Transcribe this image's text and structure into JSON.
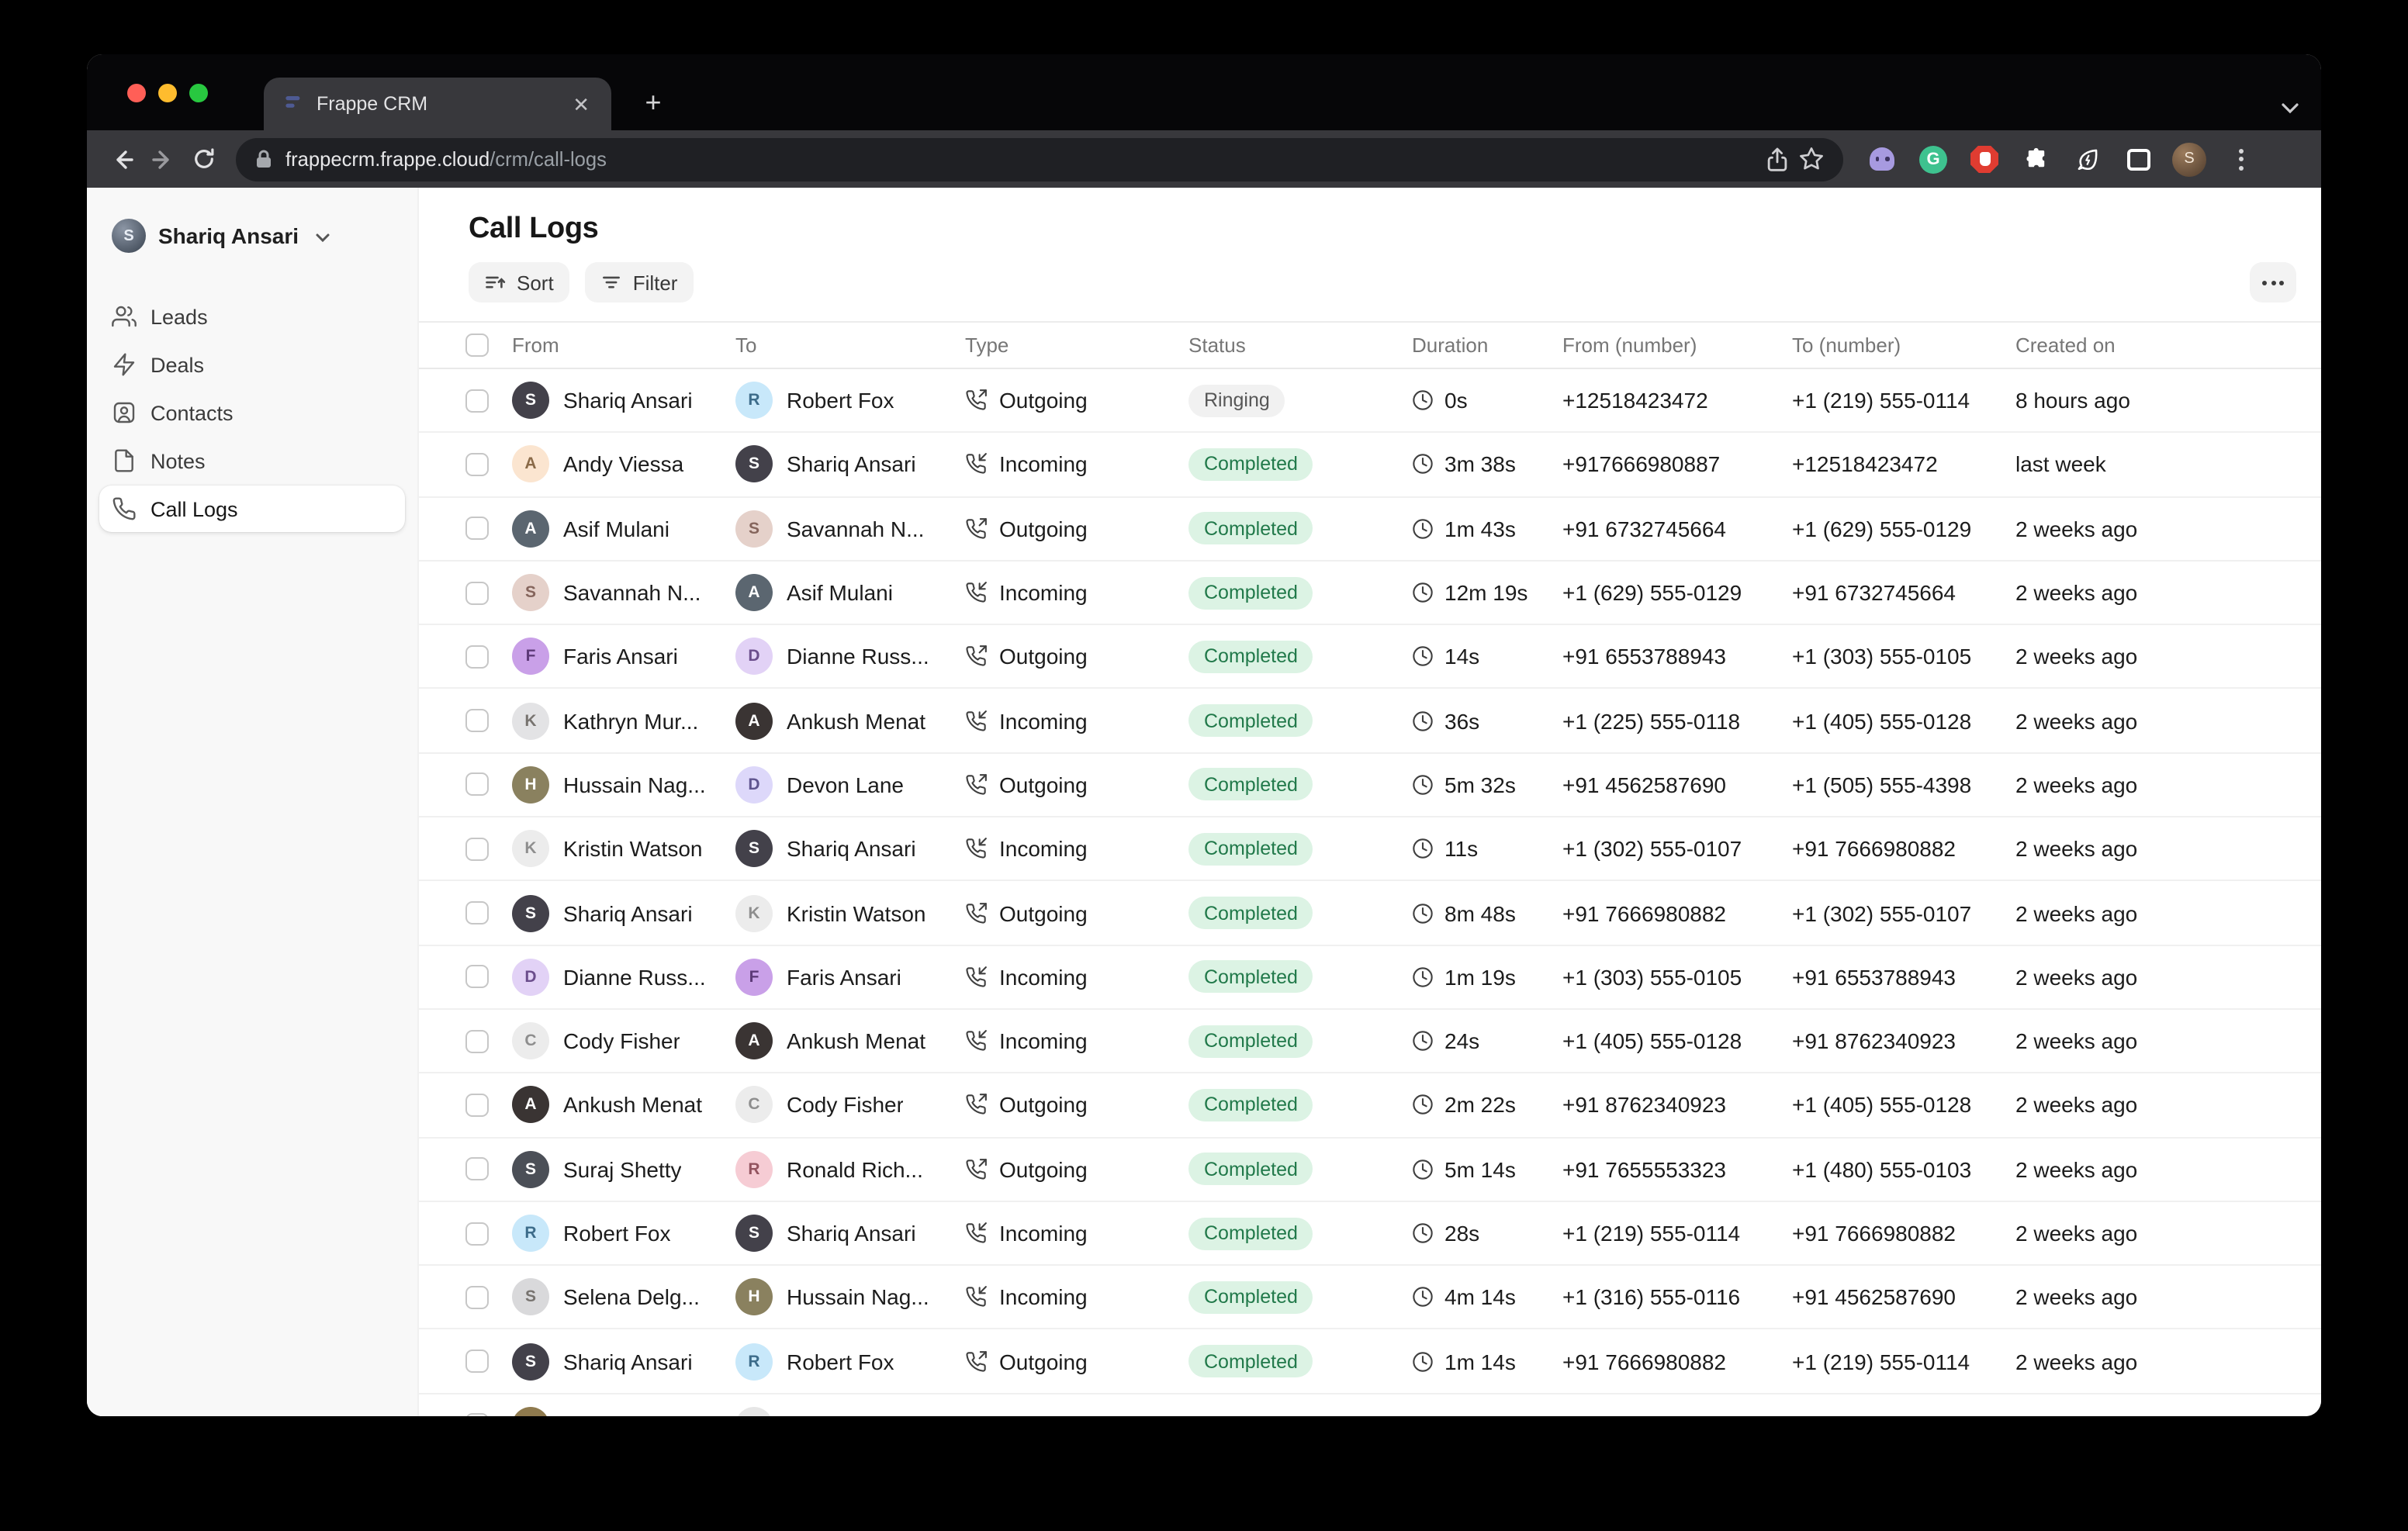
{
  "browser": {
    "tab_title": "Frappe CRM",
    "close_glyph": "✕",
    "new_tab_glyph": "+",
    "url_domain": "frappecrm.frappe.cloud",
    "url_path": "/crm/call-logs",
    "extension_g_letter": "G"
  },
  "colors": {
    "traffic_red": "#ff5f57",
    "traffic_yellow": "#febc2e",
    "traffic_green": "#28c840",
    "completed_badge_bg": "#dcf3e4",
    "completed_badge_text": "#21794a",
    "ringing_badge_bg": "#f1f1f1",
    "ringing_badge_text": "#565656",
    "sidebar_bg": "#f8f8f8",
    "chrome_toolbar": "#38383c",
    "omnibox_bg": "#1f2024"
  },
  "sidebar": {
    "user_name": "Shariq Ansari",
    "user_initial": "S",
    "items": [
      {
        "label": "Leads"
      },
      {
        "label": "Deals"
      },
      {
        "label": "Contacts"
      },
      {
        "label": "Notes"
      },
      {
        "label": "Call Logs"
      }
    ],
    "active_item": "Call Logs"
  },
  "header": {
    "title": "Call Logs",
    "sort_label": "Sort",
    "filter_label": "Filter"
  },
  "table": {
    "columns": [
      {
        "label": "From"
      },
      {
        "label": "To"
      },
      {
        "label": "Type"
      },
      {
        "label": "Status"
      },
      {
        "label": "Duration"
      },
      {
        "label": "From (number)"
      },
      {
        "label": "To (number)"
      },
      {
        "label": "Created on"
      }
    ],
    "rows": [
      {
        "from": {
          "name": "Shariq Ansari",
          "initial": "S",
          "bg": "#43414a",
          "fg": "#ffffff"
        },
        "to": {
          "name": "Robert Fox",
          "initial": "R",
          "bg": "#c8e8fa",
          "fg": "#3d6c8a"
        },
        "type": "Outgoing",
        "status": "Ringing",
        "duration": "0s",
        "from_number": "+12518423472",
        "to_number": "+1 (219) 555-0114",
        "created": "8 hours ago"
      },
      {
        "from": {
          "name": "Andy Viessa",
          "initial": "A",
          "bg": "#fbe5d0",
          "fg": "#8a6a48"
        },
        "to": {
          "name": "Shariq Ansari",
          "initial": "S",
          "bg": "#43414a",
          "fg": "#ffffff"
        },
        "type": "Incoming",
        "status": "Completed",
        "duration": "3m 38s",
        "from_number": "+917666980887",
        "to_number": "+12518423472",
        "created": "last week"
      },
      {
        "from": {
          "name": "Asif Mulani",
          "initial": "A",
          "bg": "#5b6670",
          "fg": "#ffffff"
        },
        "to": {
          "name": "Savannah N...",
          "initial": "S",
          "bg": "#e5d1ca",
          "fg": "#85655c"
        },
        "type": "Outgoing",
        "status": "Completed",
        "duration": "1m 43s",
        "from_number": "+91 6732745664",
        "to_number": "+1 (629) 555-0129",
        "created": "2 weeks ago"
      },
      {
        "from": {
          "name": "Savannah N...",
          "initial": "S",
          "bg": "#e5d1ca",
          "fg": "#85655c"
        },
        "to": {
          "name": "Asif Mulani",
          "initial": "A",
          "bg": "#5b6670",
          "fg": "#ffffff"
        },
        "type": "Incoming",
        "status": "Completed",
        "duration": "12m 19s",
        "from_number": "+1 (629) 555-0129",
        "to_number": "+91 6732745664",
        "created": "2 weeks ago"
      },
      {
        "from": {
          "name": "Faris Ansari",
          "initial": "F",
          "bg": "#c9a0e8",
          "fg": "#5d3a78"
        },
        "to": {
          "name": "Dianne Russ...",
          "initial": "D",
          "bg": "#e2d2f6",
          "fg": "#6b4d8c"
        },
        "type": "Outgoing",
        "status": "Completed",
        "duration": "14s",
        "from_number": "+91 6553788943",
        "to_number": "+1 (303) 555-0105",
        "created": "2 weeks ago"
      },
      {
        "from": {
          "name": "Kathryn Mur...",
          "initial": "K",
          "bg": "#e3e3e5",
          "fg": "#77736f"
        },
        "to": {
          "name": "Ankush Menat",
          "initial": "A",
          "bg": "#3a3433",
          "fg": "#ffffff"
        },
        "type": "Incoming",
        "status": "Completed",
        "duration": "36s",
        "from_number": "+1 (225) 555-0118",
        "to_number": "+1 (405) 555-0128",
        "created": "2 weeks ago"
      },
      {
        "from": {
          "name": "Hussain Nag...",
          "initial": "H",
          "bg": "#8a815f",
          "fg": "#ffffff"
        },
        "to": {
          "name": "Devon Lane",
          "initial": "D",
          "bg": "#ddd8fa",
          "fg": "#5f558f"
        },
        "type": "Outgoing",
        "status": "Completed",
        "duration": "5m 32s",
        "from_number": "+91 4562587690",
        "to_number": "+1 (505) 555-4398",
        "created": "2 weeks ago"
      },
      {
        "from": {
          "name": "Kristin Watson",
          "initial": "K",
          "bg": "#ececec",
          "fg": "#8e8e8e"
        },
        "to": {
          "name": "Shariq Ansari",
          "initial": "S",
          "bg": "#43414a",
          "fg": "#ffffff"
        },
        "type": "Incoming",
        "status": "Completed",
        "duration": "11s",
        "from_number": "+1 (302) 555-0107",
        "to_number": "+91 7666980882",
        "created": "2 weeks ago"
      },
      {
        "from": {
          "name": "Shariq Ansari",
          "initial": "S",
          "bg": "#43414a",
          "fg": "#ffffff"
        },
        "to": {
          "name": "Kristin Watson",
          "initial": "K",
          "bg": "#ececec",
          "fg": "#8e8e8e"
        },
        "type": "Outgoing",
        "status": "Completed",
        "duration": "8m 48s",
        "from_number": "+91 7666980882",
        "to_number": "+1 (302) 555-0107",
        "created": "2 weeks ago"
      },
      {
        "from": {
          "name": "Dianne Russ...",
          "initial": "D",
          "bg": "#e2d2f6",
          "fg": "#6b4d8c"
        },
        "to": {
          "name": "Faris Ansari",
          "initial": "F",
          "bg": "#c9a0e8",
          "fg": "#5d3a78"
        },
        "type": "Incoming",
        "status": "Completed",
        "duration": "1m 19s",
        "from_number": "+1 (303) 555-0105",
        "to_number": "+91 6553788943",
        "created": "2 weeks ago"
      },
      {
        "from": {
          "name": "Cody Fisher",
          "initial": "C",
          "bg": "#ececec",
          "fg": "#8e8e8e"
        },
        "to": {
          "name": "Ankush Menat",
          "initial": "A",
          "bg": "#3a3433",
          "fg": "#ffffff"
        },
        "type": "Incoming",
        "status": "Completed",
        "duration": "24s",
        "from_number": "+1 (405) 555-0128",
        "to_number": "+91 8762340923",
        "created": "2 weeks ago"
      },
      {
        "from": {
          "name": "Ankush Menat",
          "initial": "A",
          "bg": "#3a3433",
          "fg": "#ffffff"
        },
        "to": {
          "name": "Cody Fisher",
          "initial": "C",
          "bg": "#ececec",
          "fg": "#8e8e8e"
        },
        "type": "Outgoing",
        "status": "Completed",
        "duration": "2m 22s",
        "from_number": "+91 8762340923",
        "to_number": "+1 (405) 555-0128",
        "created": "2 weeks ago"
      },
      {
        "from": {
          "name": "Suraj Shetty",
          "initial": "S",
          "bg": "#4b4f57",
          "fg": "#ffffff"
        },
        "to": {
          "name": "Ronald Rich...",
          "initial": "R",
          "bg": "#f6ccd4",
          "fg": "#93545f"
        },
        "type": "Outgoing",
        "status": "Completed",
        "duration": "5m 14s",
        "from_number": "+91 7655553323",
        "to_number": "+1 (480) 555-0103",
        "created": "2 weeks ago"
      },
      {
        "from": {
          "name": "Robert Fox",
          "initial": "R",
          "bg": "#c8e8fa",
          "fg": "#3d6c8a"
        },
        "to": {
          "name": "Shariq Ansari",
          "initial": "S",
          "bg": "#43414a",
          "fg": "#ffffff"
        },
        "type": "Incoming",
        "status": "Completed",
        "duration": "28s",
        "from_number": "+1 (219) 555-0114",
        "to_number": "+91 7666980882",
        "created": "2 weeks ago"
      },
      {
        "from": {
          "name": "Selena Delg...",
          "initial": "S",
          "bg": "#d9d9db",
          "fg": "#77736f"
        },
        "to": {
          "name": "Hussain Nag...",
          "initial": "H",
          "bg": "#8a815f",
          "fg": "#ffffff"
        },
        "type": "Incoming",
        "status": "Completed",
        "duration": "4m 14s",
        "from_number": "+1 (316) 555-0116",
        "to_number": "+91 4562587690",
        "created": "2 weeks ago"
      },
      {
        "from": {
          "name": "Shariq Ansari",
          "initial": "S",
          "bg": "#43414a",
          "fg": "#ffffff"
        },
        "to": {
          "name": "Robert Fox",
          "initial": "R",
          "bg": "#c8e8fa",
          "fg": "#3d6c8a"
        },
        "type": "Outgoing",
        "status": "Completed",
        "duration": "1m 14s",
        "from_number": "+91 7666980882",
        "to_number": "+1 (219) 555-0114",
        "created": "2 weeks ago"
      },
      {
        "partial": true,
        "from": {
          "name": "",
          "initial": "",
          "bg": "#8f7a4e",
          "fg": "#ffffff"
        },
        "to": {
          "name": "",
          "initial": "",
          "bg": "#e6e6e6",
          "fg": "#999999"
        },
        "type": "",
        "status": "",
        "duration": "",
        "from_number": "",
        "to_number": "",
        "created": ""
      }
    ]
  }
}
